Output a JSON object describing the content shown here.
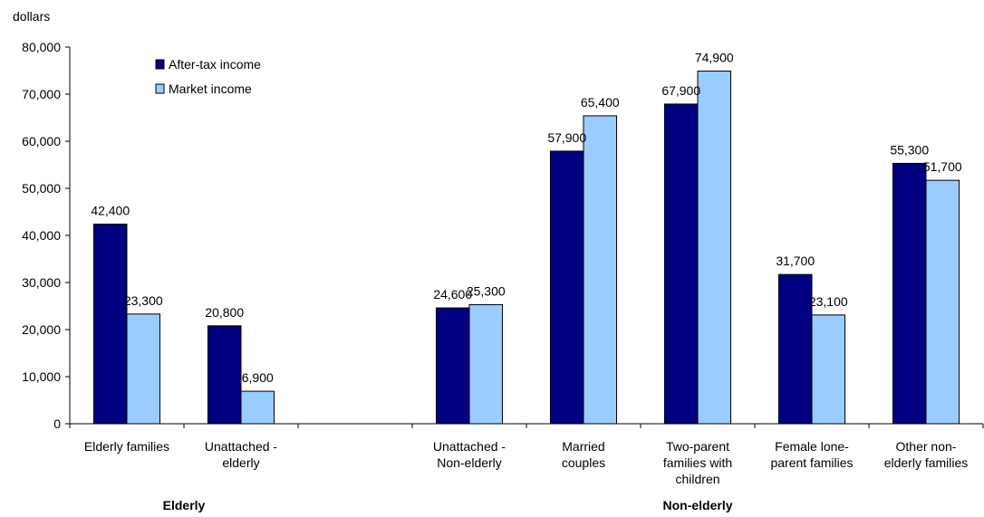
{
  "chart_data": {
    "type": "bar",
    "unit_label": "dollars",
    "ylim": [
      0,
      80000
    ],
    "yticks": [
      0,
      10000,
      20000,
      30000,
      40000,
      50000,
      60000,
      70000,
      80000
    ],
    "ytick_labels": [
      "0",
      "10,000",
      "20,000",
      "30,000",
      "40,000",
      "50,000",
      "60,000",
      "70,000",
      "80,000"
    ],
    "grid": false,
    "legend_position": "top-left",
    "categories": [
      [
        "Elderly families"
      ],
      [
        "Unattached -",
        "elderly"
      ],
      [],
      [
        "Unattached -",
        "Non-elderly"
      ],
      [
        "Married",
        "couples"
      ],
      [
        "Two-parent",
        "families with",
        "children"
      ],
      [
        "Female lone-",
        "parent families"
      ],
      [
        "Other non-",
        "elderly families"
      ]
    ],
    "groups": [
      {
        "label": "Elderly",
        "from": 0,
        "to": 1
      },
      {
        "label": "Non-elderly",
        "from": 3,
        "to": 7
      }
    ],
    "series": [
      {
        "name": "After-tax income",
        "color": "#000080",
        "values": [
          42400,
          20800,
          null,
          24600,
          57900,
          67900,
          31700,
          55300
        ],
        "labels": [
          "42,400",
          "20,800",
          "",
          "24,600",
          "57,900",
          "67,900",
          "31,700",
          "55,300"
        ]
      },
      {
        "name": "Market income",
        "color": "#99CCFF",
        "values": [
          23300,
          6900,
          null,
          25300,
          65400,
          74900,
          23100,
          51700
        ],
        "labels": [
          "23,300",
          "6,900",
          "",
          "25,300",
          "65,400",
          "74,900",
          "23,100",
          "51,700"
        ]
      }
    ]
  }
}
